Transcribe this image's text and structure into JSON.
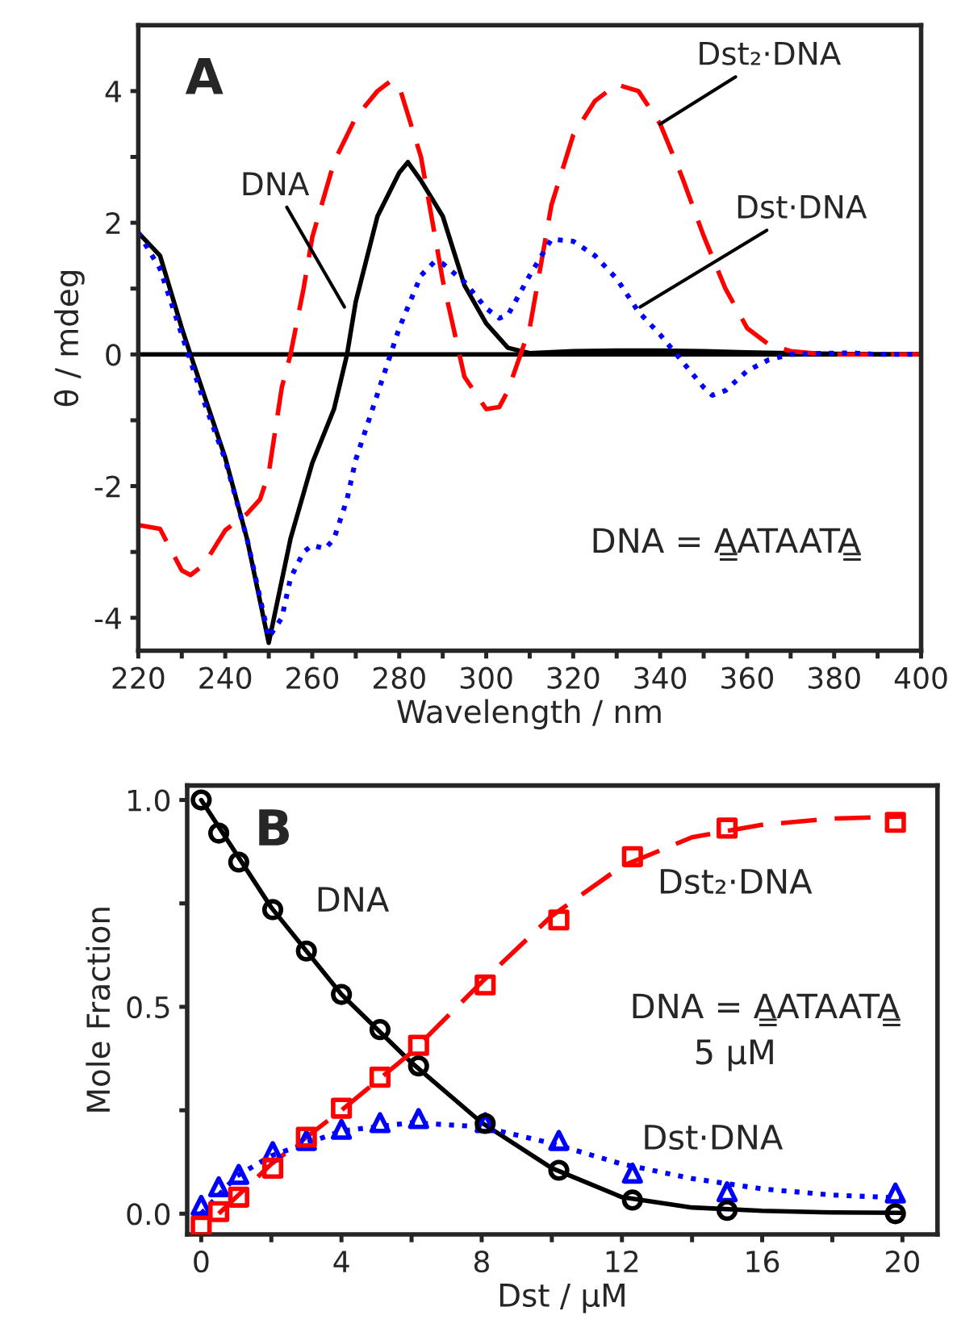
{
  "chart_data": [
    {
      "type": "line",
      "title": "A",
      "xlabel": "Wavelength / nm",
      "ylabel": "θ / mdeg",
      "xlim": [
        220,
        400
      ],
      "ylim": [
        -4.5,
        5.0
      ],
      "xticks": [
        220,
        {
          "value": 230,
          "label": null
        },
        240,
        {
          "value": 250,
          "label": null
        },
        260,
        {
          "value": 270,
          "label": null
        },
        280,
        {
          "value": 290,
          "label": null
        },
        300,
        {
          "value": 310,
          "label": null
        },
        320,
        {
          "value": 330,
          "label": null
        },
        340,
        {
          "value": 350,
          "label": null
        },
        360,
        {
          "value": 370,
          "label": null
        },
        380,
        {
          "value": 390,
          "label": null
        },
        400
      ],
      "yticks": [
        -4,
        {
          "value": -3,
          "label": null
        },
        -2,
        {
          "value": -1,
          "label": null
        },
        0,
        {
          "value": 1,
          "label": null
        },
        2,
        {
          "value": 3,
          "label": null
        },
        4
      ],
      "grid": false,
      "legend": false,
      "ref_lines": [
        {
          "axis": "y",
          "value": 0,
          "color": "#000000"
        }
      ],
      "series": [
        {
          "color": "#000000",
          "line_style": "solid",
          "x": [
            220,
            225,
            230,
            232,
            240,
            245,
            250,
            255,
            260,
            265,
            268,
            270,
            275,
            280,
            282,
            285,
            290,
            295,
            300,
            305,
            310,
            320,
            330,
            340,
            350,
            360,
            370,
            380,
            390,
            400
          ],
          "values": [
            1.85,
            1.5,
            0.4,
            0.0,
            -1.57,
            -2.8,
            -4.38,
            -2.8,
            -1.65,
            -0.83,
            0.0,
            0.8,
            2.1,
            2.76,
            2.92,
            2.64,
            2.1,
            1.05,
            0.47,
            0.1,
            0.02,
            0.05,
            0.06,
            0.06,
            0.05,
            0.03,
            0.02,
            0.01,
            0.0,
            0.0
          ]
        },
        {
          "color": "#ff0000",
          "line_style": "dashed",
          "x": [
            220,
            225,
            230,
            232,
            235,
            240,
            245,
            248,
            250,
            253,
            255,
            258,
            260,
            265,
            270,
            275,
            278,
            280,
            285,
            290,
            295,
            300,
            303,
            305,
            310,
            315,
            320,
            325,
            330,
            335,
            340,
            345,
            350,
            355,
            360,
            365,
            370,
            375,
            380,
            390,
            400
          ],
          "values": [
            -2.59,
            -2.65,
            -3.28,
            -3.35,
            -3.2,
            -2.67,
            -2.42,
            -2.2,
            -1.8,
            -0.5,
            0.0,
            1.0,
            1.78,
            2.92,
            3.6,
            4.0,
            4.15,
            4.07,
            3.0,
            1.13,
            -0.34,
            -0.83,
            -0.8,
            -0.55,
            0.4,
            2.27,
            3.33,
            3.85,
            4.1,
            4.0,
            3.5,
            2.7,
            1.8,
            1.0,
            0.4,
            0.15,
            0.05,
            0.02,
            0.0,
            0.0,
            0.0
          ]
        },
        {
          "color": "#0000ff",
          "line_style": "dotted",
          "x": [
            220,
            225,
            230,
            235,
            240,
            245,
            250,
            253,
            255,
            258,
            260,
            263,
            265,
            268,
            270,
            275,
            278,
            280,
            285,
            288,
            290,
            295,
            300,
            303,
            305,
            310,
            315,
            320,
            325,
            330,
            335,
            340,
            345,
            350,
            352,
            355,
            360,
            365,
            370,
            380,
            385,
            390,
            400
          ],
          "values": [
            1.85,
            1.3,
            0.3,
            -0.7,
            -1.6,
            -2.8,
            -4.3,
            -4.0,
            -3.4,
            -3.0,
            -2.9,
            -2.95,
            -2.8,
            -2.2,
            -1.6,
            -0.6,
            0.0,
            0.4,
            1.2,
            1.4,
            1.38,
            1.1,
            0.7,
            0.55,
            0.6,
            1.2,
            1.75,
            1.72,
            1.5,
            1.15,
            0.65,
            0.3,
            -0.1,
            -0.5,
            -0.62,
            -0.55,
            -0.25,
            -0.08,
            0.0,
            0.02,
            0.02,
            0.0,
            0.0
          ]
        }
      ],
      "annotations": [
        {
          "text": "DNA",
          "x": 267.4,
          "y": 0.72
        },
        {
          "text": "Dst₂·DNA",
          "x": 340,
          "y": 3.5
        },
        {
          "text": "Dst·DNA",
          "x": 335.4,
          "y": 0.72
        },
        "DNA = A̳ATAATA̳"
      ]
    },
    {
      "type": "scatter",
      "title": "B",
      "xlabel": "Dst / μM",
      "ylabel": "Mole Fraction",
      "xlim": [
        -0.4,
        21.0
      ],
      "ylim": [
        -0.05,
        1.035
      ],
      "xticks": [
        0,
        {
          "value": 2,
          "label": null
        },
        4,
        {
          "value": 6,
          "label": null
        },
        8,
        {
          "value": 10,
          "label": null
        },
        12,
        {
          "value": 14,
          "label": null
        },
        16,
        {
          "value": 18,
          "label": null
        },
        20
      ],
      "yticks": [
        {
          "value": 0,
          "label": "0.0"
        },
        {
          "value": 0.25,
          "label": null
        },
        0.5,
        {
          "value": 0.75,
          "label": null
        },
        {
          "value": 1,
          "label": "1.0"
        }
      ],
      "grid": false,
      "legend": false,
      "series": [
        {
          "type": "line",
          "color": "#000000",
          "line_style": "solid",
          "x": [
            0,
            2,
            4,
            6,
            8,
            10,
            12,
            14,
            16,
            18,
            20
          ],
          "values": [
            1.0,
            0.74,
            0.53,
            0.365,
            0.22,
            0.11,
            0.04,
            0.015,
            0.007,
            0.003,
            0.002
          ]
        },
        {
          "type": "line",
          "color": "#ff0000",
          "line_style": "dashed",
          "x": [
            0.5,
            2,
            4,
            6,
            8,
            10,
            12,
            14,
            16,
            18,
            20
          ],
          "values": [
            0.0,
            0.12,
            0.25,
            0.39,
            0.56,
            0.72,
            0.84,
            0.91,
            0.94,
            0.955,
            0.96
          ]
        },
        {
          "type": "line",
          "color": "#0000ff",
          "line_style": "dotted",
          "x": [
            0,
            1,
            2,
            4,
            6,
            8,
            10,
            12,
            14,
            16,
            18,
            20
          ],
          "values": [
            0.0,
            0.09,
            0.14,
            0.2,
            0.22,
            0.21,
            0.17,
            0.12,
            0.085,
            0.06,
            0.045,
            0.038
          ]
        },
        {
          "color": "#000000",
          "marker": "circle",
          "x": [
            0,
            0.5,
            1.07,
            2.04,
            3.0,
            4.0,
            5.1,
            6.2,
            8.1,
            10.2,
            12.3,
            15.0,
            19.8
          ],
          "values": [
            1.0,
            0.92,
            0.85,
            0.735,
            0.635,
            0.53,
            0.445,
            0.357,
            0.218,
            0.105,
            0.033,
            0.008,
            0.0
          ]
        },
        {
          "color": "#ff0000",
          "marker": "square",
          "x": [
            0,
            0.5,
            1.07,
            2.04,
            3.0,
            4.0,
            5.1,
            6.2,
            8.1,
            10.2,
            12.3,
            15.0,
            19.8
          ],
          "values": [
            -0.03,
            0.005,
            0.04,
            0.11,
            0.185,
            0.255,
            0.33,
            0.407,
            0.553,
            0.71,
            0.863,
            0.932,
            0.946
          ]
        },
        {
          "color": "#0000ff",
          "marker": "triangle",
          "x": [
            0,
            0.5,
            1.07,
            2.04,
            3.0,
            4.0,
            5.1,
            6.2,
            8.1,
            10.2,
            12.3,
            15.0,
            19.8
          ],
          "values": [
            0.02,
            0.065,
            0.095,
            0.15,
            0.177,
            0.204,
            0.22,
            0.23,
            0.22,
            0.177,
            0.098,
            0.053,
            0.05
          ]
        }
      ],
      "annotations": [
        "DNA",
        "Dst₂·DNA",
        "DNA = A̳ATAATA̳",
        "5 μM",
        "Dst·DNA"
      ]
    }
  ]
}
